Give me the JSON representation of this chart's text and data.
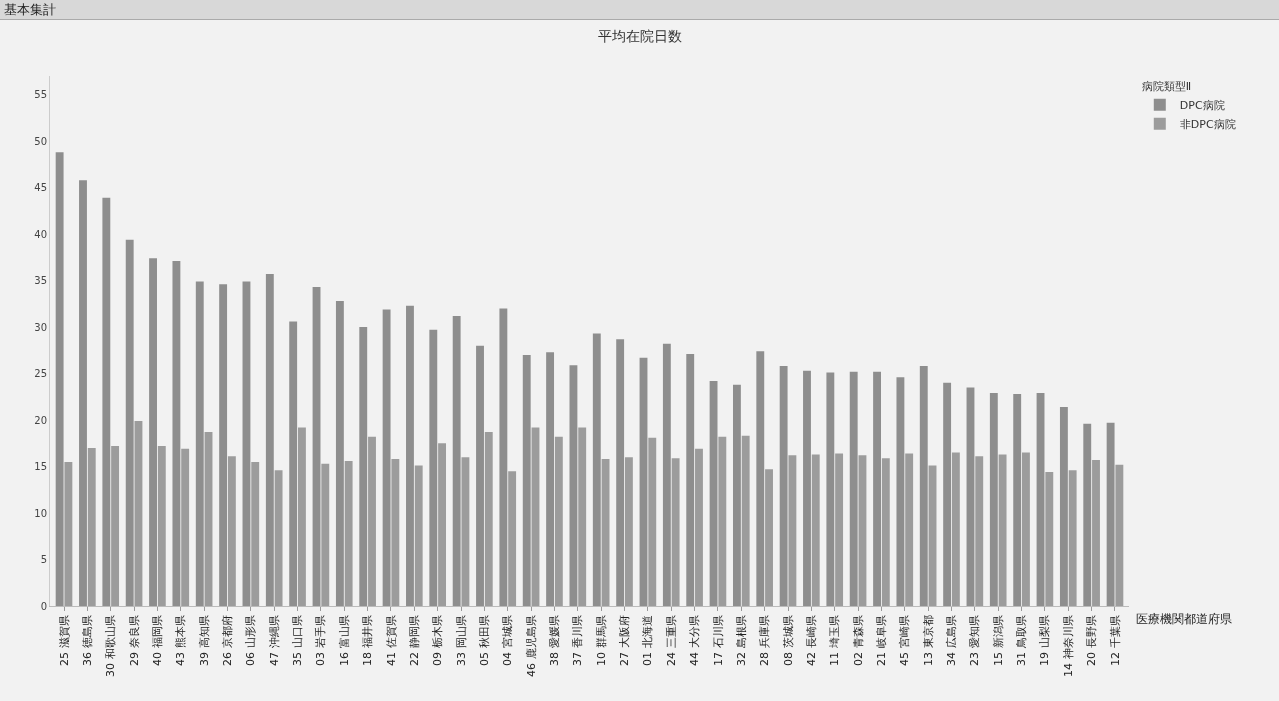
{
  "chart_data": {
    "type": "bar",
    "title": "平均在院日数",
    "xlabel": "医療機関都道府県",
    "legend_title": "病院類型Ⅱ",
    "annotations": [
      "基本集計"
    ],
    "categories": [
      "25 滋賀県",
      "36 徳島県",
      "30 和歌山県",
      "29 奈良県",
      "40 福岡県",
      "43 熊本県",
      "39 高知県",
      "26 京都府",
      "06 山形県",
      "47 沖縄県",
      "35 山口県",
      "03 岩手県",
      "16 富山県",
      "18 福井県",
      "41 佐賀県",
      "22 静岡県",
      "09 栃木県",
      "33 岡山県",
      "05 秋田県",
      "04 宮城県",
      "46 鹿児島県",
      "38 愛媛県",
      "37 香川県",
      "10 群馬県",
      "27 大阪府",
      "01 北海道",
      "24 三重県",
      "44 大分県",
      "17 石川県",
      "32 島根県",
      "28 兵庫県",
      "08 茨城県",
      "42 長崎県",
      "11 埼玉県",
      "02 青森県",
      "21 岐阜県",
      "45 宮崎県",
      "13 東京都",
      "34 広島県",
      "23 愛知県",
      "15 新潟県",
      "31 鳥取県",
      "19 山梨県",
      "14 神奈川県",
      "20 長野県",
      "12 千葉県"
    ],
    "series": [
      {
        "name": "DPC病院",
        "color": "#8e8e8e",
        "values": [
          48.8,
          45.8,
          43.9,
          39.4,
          37.4,
          37.1,
          34.9,
          34.6,
          34.9,
          35.7,
          30.6,
          34.3,
          32.8,
          30.0,
          31.9,
          32.3,
          29.7,
          31.2,
          28.0,
          32.0,
          27.0,
          27.3,
          25.9,
          29.3,
          28.7,
          26.7,
          28.2,
          27.1,
          24.2,
          23.8,
          27.4,
          25.8,
          25.3,
          25.1,
          25.2,
          25.2,
          24.6,
          25.8,
          24.0,
          23.5,
          22.9,
          22.8,
          22.9,
          21.4,
          19.6,
          19.7
        ]
      },
      {
        "name": "非DPC病院",
        "color": "#9c9c9c",
        "values": [
          15.5,
          17.0,
          17.2,
          19.9,
          17.2,
          16.9,
          18.7,
          16.1,
          15.5,
          14.6,
          19.2,
          15.3,
          15.6,
          18.2,
          15.8,
          15.1,
          17.5,
          16.0,
          18.7,
          14.5,
          19.2,
          18.2,
          19.2,
          15.8,
          16.0,
          18.1,
          15.9,
          16.9,
          18.2,
          18.3,
          14.7,
          16.2,
          16.3,
          16.4,
          16.2,
          15.9,
          16.4,
          15.1,
          16.5,
          16.1,
          16.3,
          16.5,
          14.4,
          14.6,
          15.7,
          15.2
        ]
      }
    ],
    "ylim": [
      0,
      57
    ],
    "yticks": [
      0,
      5,
      10,
      15,
      20,
      25,
      30,
      35,
      40,
      45,
      50,
      55
    ],
    "grid": false,
    "legend": "top right"
  }
}
